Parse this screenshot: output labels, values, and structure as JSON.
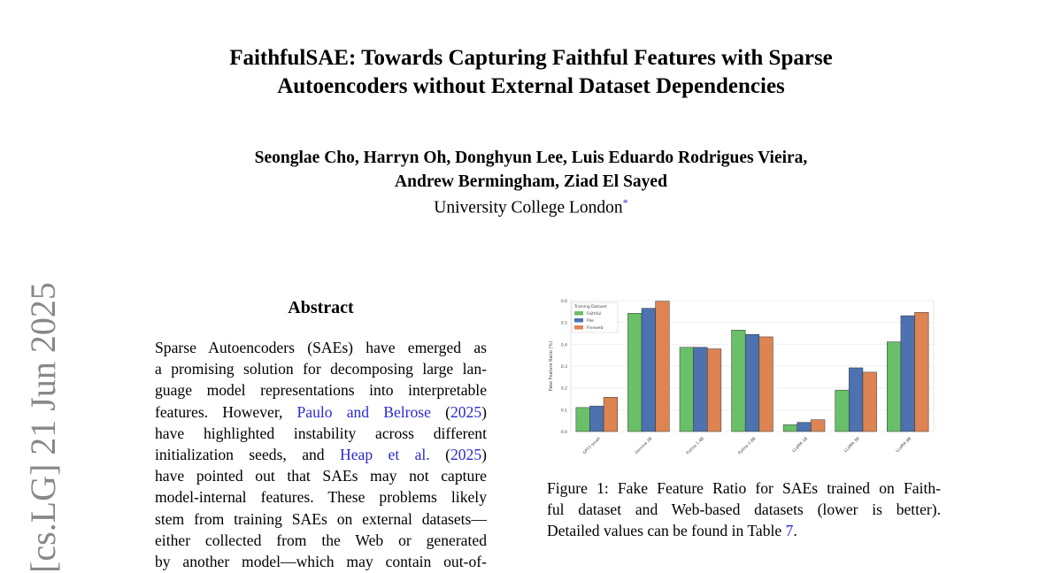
{
  "title_lines": [
    "FaithfulSAE: Towards Capturing Faithful Features with Sparse",
    "Autoencoders without External Dataset Dependencies"
  ],
  "authors_lines": [
    "Seonglae Cho, Harryn Oh, Donghyun Lee, Luis Eduardo Rodrigues Vieira,",
    "Andrew Bermingham, Ziad El Sayed"
  ],
  "affiliation": "University College London",
  "affiliation_mark": "*",
  "arxiv_stamp": "[cs.LG]  21 Jun 2025",
  "abstract": {
    "heading": "Abstract",
    "lines": [
      "Sparse Autoencoders (SAEs) have emerged as",
      "a promising solution for decomposing large lan-",
      "guage model representations into interpretable"
    ],
    "line4_pre": "features.  However, ",
    "cite1": "Paulo and Belrose",
    "cite1_open": " (",
    "cite1_year": "2025",
    "cite1_close": ")",
    "line5": "have highlighted instability across different",
    "line6_pre": "initialization seeds, and ",
    "cite2": "Heap et al.",
    "cite2_open": " (",
    "cite2_year": "2025",
    "cite2_close": ")",
    "lines_rest": [
      "have pointed out that SAEs may not capture",
      "model-internal features. These problems likely",
      "stem from training SAEs on external datasets—",
      "either collected from the Web or generated",
      "by another model—which may contain out-of-"
    ]
  },
  "figure": {
    "caption_lines": [
      "Figure 1: Fake Feature Ratio for SAEs trained on Faith-",
      "ful dataset and Web-based datasets (lower is better)."
    ],
    "caption_last_pre": "Detailed values can be found in Table ",
    "caption_ref": "7",
    "caption_last_post": "."
  },
  "chart_data": {
    "type": "bar",
    "categories": [
      "GPT2-small",
      "Gemma 2B",
      "Pythia 1.4B",
      "Pythia 2.8B",
      "LLaMA 1B",
      "LLaMA 3B",
      "LLaMA 8B"
    ],
    "series": [
      {
        "name": "Faithful",
        "color": "#6abf69",
        "values": [
          0.11,
          0.542,
          0.386,
          0.465,
          0.031,
          0.19,
          0.411
        ]
      },
      {
        "name": "Pile",
        "color": "#4c72b0",
        "values": [
          0.117,
          0.565,
          0.386,
          0.445,
          0.042,
          0.292,
          0.531
        ]
      },
      {
        "name": "Fineweb",
        "color": "#dd8452",
        "values": [
          0.157,
          0.597,
          0.379,
          0.434,
          0.054,
          0.272,
          0.546
        ]
      }
    ],
    "legend_title": "Training Dataset",
    "legend_position": "top-left",
    "ylabel": "Fake Feature Ratio (%)",
    "yticks": [
      "0.0",
      "0.1",
      "0.2",
      "0.3",
      "0.4",
      "0.5",
      "0.6"
    ],
    "ylim": [
      0,
      0.6
    ],
    "grid": true
  }
}
